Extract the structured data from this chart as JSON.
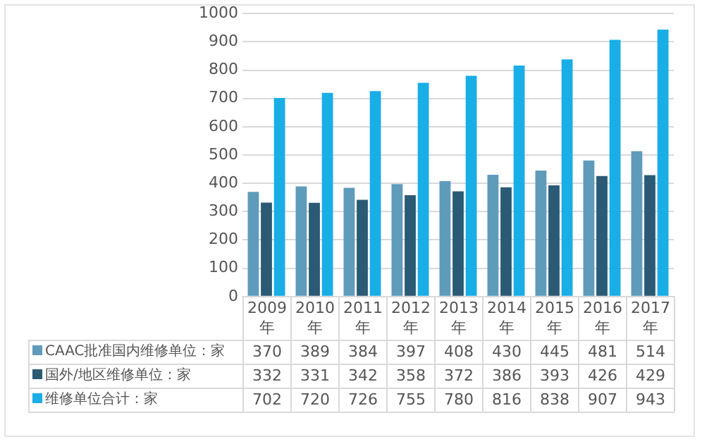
{
  "chart_data": {
    "type": "bar",
    "categories": [
      "2009年",
      "2010年",
      "2011年",
      "2012年",
      "2013年",
      "2014年",
      "2015年",
      "2016年",
      "2017年"
    ],
    "series": [
      {
        "name": "CAAC批准国内维修单位：家",
        "color": "#5f9bbb",
        "values": [
          370,
          389,
          384,
          397,
          408,
          430,
          445,
          481,
          514
        ]
      },
      {
        "name": "国外/地区维修单位：家",
        "color": "#2b5a75",
        "values": [
          332,
          331,
          342,
          358,
          372,
          386,
          393,
          426,
          429
        ]
      },
      {
        "name": "维修单位合计：家",
        "color": "#19aee6",
        "values": [
          702,
          720,
          726,
          755,
          780,
          816,
          838,
          907,
          943
        ]
      }
    ],
    "ylim": [
      0,
      1000
    ],
    "yticks": [
      0,
      100,
      200,
      300,
      400,
      500,
      600,
      700,
      800,
      900,
      1000
    ],
    "grid": "y",
    "legend": "bottom",
    "data_labels": true
  }
}
